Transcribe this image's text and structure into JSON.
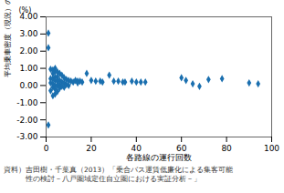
{
  "chart_data": {
    "type": "scatter",
    "xlabel": "各路線の運行回数",
    "ylabel": "平均乗車密度（現況）の変化量",
    "annotations": [
      "(%)",
      "資料）吉田樹・千葉真（2013）「乗合バス運賃低廉化による集客可能",
      "　　　性の検討－八戸圏域定住自立圏における実証分析－」"
    ],
    "color": "#1a6faf",
    "marker": "diamond",
    "grid": false,
    "xlim": [
      0,
      100
    ],
    "ylim": [
      -3.0,
      4.0
    ],
    "xticks": [
      0,
      20,
      40,
      60,
      80,
      100
    ],
    "yticks": [
      {
        "value": -3,
        "label": "-3.00"
      },
      {
        "value": -2,
        "label": "-2.00"
      },
      {
        "value": -1,
        "label": "-1.00"
      },
      {
        "value": 0,
        "label": "0.00"
      },
      {
        "value": 1,
        "label": "1.00"
      },
      {
        "value": 2,
        "label": "2.00"
      },
      {
        "value": 3,
        "label": "3.00"
      },
      {
        "value": 4,
        "label": "4.00"
      }
    ],
    "x": [
      1,
      1,
      1,
      2,
      2,
      2,
      2,
      3,
      3,
      3,
      3,
      3,
      3,
      4,
      4,
      4,
      4,
      4,
      4,
      4,
      5,
      5,
      5,
      5,
      5,
      6,
      6,
      6,
      6,
      7,
      7,
      7,
      8,
      8,
      8,
      9,
      9,
      10,
      10,
      11,
      12,
      13,
      14,
      14,
      15,
      16,
      18,
      20,
      22,
      24,
      25,
      28,
      30,
      32,
      34,
      35,
      38,
      40,
      42,
      44,
      60,
      62,
      65,
      68,
      72,
      78,
      90,
      94
    ],
    "values": [
      3.05,
      2.2,
      -2.3,
      0.95,
      0.4,
      0.15,
      -0.3,
      0.9,
      0.7,
      0.4,
      0.1,
      -0.1,
      -0.6,
      1.0,
      0.8,
      0.5,
      0.3,
      0.0,
      -0.2,
      -0.5,
      0.8,
      0.5,
      0.25,
      0.0,
      -0.35,
      0.7,
      0.3,
      0.05,
      -0.15,
      0.6,
      0.2,
      -0.05,
      0.45,
      0.15,
      -0.1,
      0.35,
      0.05,
      0.3,
      0.0,
      0.25,
      0.2,
      0.3,
      0.25,
      0.15,
      0.25,
      0.2,
      0.7,
      0.3,
      0.25,
      0.25,
      0.2,
      0.6,
      0.25,
      0.25,
      0.2,
      0.2,
      0.25,
      0.2,
      0.2,
      0.2,
      0.45,
      0.3,
      0.1,
      -0.05,
      0.35,
      0.4,
      0.15,
      0.1
    ]
  }
}
